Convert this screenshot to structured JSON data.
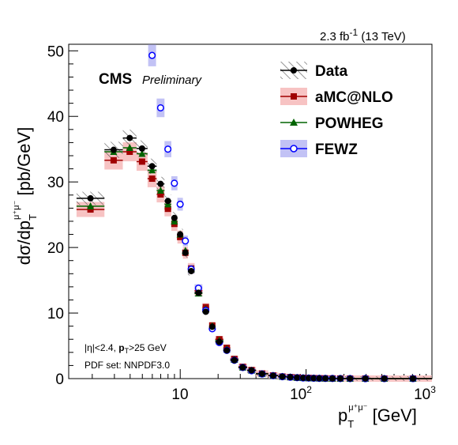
{
  "header": {
    "lumi_value": "2.3 fb",
    "lumi_exp": "-1",
    "energy": "(13 TeV)",
    "experiment": "CMS",
    "status": "Preliminary"
  },
  "selection": {
    "eta_cut": "|η|<2.4, ",
    "pt_sym": "p",
    "pt_sub": "T",
    "pt_cut": ">25 GeV",
    "pdf_line": "PDF set: NNPDF3.0"
  },
  "axes": {
    "x_main": "p",
    "x_sub": "T",
    "x_sup": "μ⁺μ⁻",
    "x_unit": " [GeV]",
    "y_main": "dσ/dp",
    "y_sub": "T",
    "y_sup": "μ⁺μ⁻",
    "y_unit": " [pb/GeV]"
  },
  "legend": [
    {
      "label": "Data",
      "color": "#000000",
      "marker": "filled-circle"
    },
    {
      "label": "aMC@NLO",
      "color": "#a00000",
      "marker": "filled-square"
    },
    {
      "label": "POWHEG",
      "color": "#006400",
      "marker": "filled-triangle"
    },
    {
      "label": "FEWZ",
      "color": "#0000ff",
      "marker": "open-circle"
    }
  ],
  "chart_data": {
    "type": "scatter",
    "x_scale": "log",
    "xlim": [
      1.3,
      1000
    ],
    "ylim": [
      0,
      51
    ],
    "x_tick_labels": [
      {
        "base": "10",
        "exp": ""
      },
      {
        "base": "10",
        "exp": "2"
      },
      {
        "base": "10",
        "exp": "3"
      }
    ],
    "y_ticks": [
      0,
      10,
      20,
      30,
      40,
      50
    ],
    "bins": [
      [
        1.5,
        2.5
      ],
      [
        2.5,
        3.5
      ],
      [
        3.5,
        4.5
      ],
      [
        4.5,
        5.5
      ],
      [
        5.5,
        6.5
      ],
      [
        6.5,
        7.5
      ],
      [
        7.5,
        8.5
      ],
      [
        8.5,
        9.5
      ],
      [
        9.5,
        10.5
      ],
      [
        10.5,
        11.5
      ],
      [
        11.5,
        13
      ],
      [
        13,
        15
      ],
      [
        15,
        17
      ],
      [
        17,
        19
      ],
      [
        19,
        22
      ],
      [
        22,
        25
      ],
      [
        25,
        29
      ],
      [
        29,
        34
      ],
      [
        34,
        40
      ],
      [
        40,
        50
      ],
      [
        50,
        60
      ],
      [
        60,
        70
      ],
      [
        70,
        80
      ],
      [
        80,
        90
      ],
      [
        90,
        100
      ],
      [
        100,
        110
      ],
      [
        110,
        120
      ],
      [
        120,
        135
      ],
      [
        135,
        150
      ],
      [
        150,
        175
      ],
      [
        175,
        200
      ],
      [
        200,
        250
      ],
      [
        250,
        350
      ],
      [
        350,
        500
      ],
      [
        500,
        1000
      ]
    ],
    "series": [
      {
        "name": "Data",
        "values": [
          27.5,
          34.9,
          36.7,
          35.1,
          32.4,
          29.7,
          27.1,
          24.5,
          22.0,
          19.2,
          16.4,
          13.1,
          10.2,
          7.9,
          5.6,
          4.3,
          2.8,
          1.7,
          1.25,
          0.73,
          0.45,
          0.3,
          0.22,
          0.15,
          0.11,
          0.08,
          0.06,
          0.04,
          0.03,
          0.02,
          0.01,
          0.005,
          0.002,
          0.001,
          0.0003
        ]
      },
      {
        "name": "aMC@NLO",
        "values": [
          25.8,
          33.3,
          34.6,
          33.1,
          30.5,
          28.1,
          25.9,
          23.6,
          21.6,
          19.2,
          16.8,
          13.4,
          10.9,
          8.1,
          6.0,
          4.7,
          3.0,
          1.8,
          1.3,
          0.78,
          0.48,
          0.31,
          0.23,
          0.16,
          0.12,
          0.09,
          0.07,
          0.05,
          0.035,
          0.022,
          0.012,
          0.006,
          0.003,
          0.001,
          0.0003
        ]
      },
      {
        "name": "POWHEG",
        "values": [
          26.3,
          34.6,
          35.2,
          34.3,
          31.8,
          28.7,
          26.6,
          24.0,
          22.0,
          19.5,
          16.7,
          13.0,
          10.6,
          8.0,
          5.8,
          4.5,
          2.9,
          1.7,
          1.25,
          0.74,
          0.46,
          0.3,
          0.22,
          0.15,
          0.11,
          0.08,
          0.06,
          0.04,
          0.03,
          0.02,
          0.01,
          0.005,
          0.002,
          0.001,
          0.0003
        ]
      },
      {
        "name": "FEWZ",
        "values": [
          null,
          null,
          null,
          null,
          49.3,
          41.3,
          35.0,
          29.8,
          26.6,
          21.0,
          16.7,
          13.8,
          10.4,
          7.6,
          5.5,
          4.3,
          2.8,
          1.7,
          1.2,
          0.71,
          0.44,
          0.29,
          0.21,
          0.14,
          0.1,
          0.08,
          0.06,
          0.04,
          0.03,
          0.02,
          0.01,
          0.005,
          0.002,
          0.001,
          0.0003
        ]
      }
    ],
    "grid": false,
    "legend_position": "top-right"
  }
}
